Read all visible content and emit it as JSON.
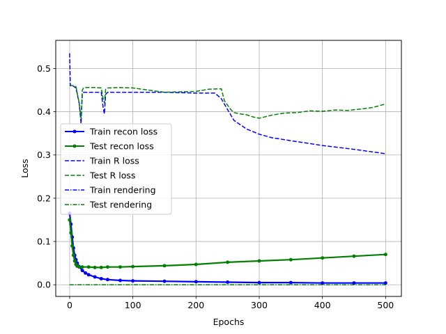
{
  "chart_data": {
    "type": "line",
    "xlabel": "Epochs",
    "ylabel": "Loss",
    "xlim": [
      -22,
      525
    ],
    "ylim": [
      -0.027,
      0.565
    ],
    "xticks": [
      0,
      100,
      200,
      300,
      400,
      500
    ],
    "yticks": [
      0.0,
      0.1,
      0.2,
      0.3,
      0.4,
      0.5
    ],
    "xtick_labels": [
      "0",
      "100",
      "200",
      "300",
      "400",
      "500"
    ],
    "ytick_labels": [
      "0.0",
      "0.1",
      "0.2",
      "0.3",
      "0.4",
      "0.5"
    ],
    "grid": true,
    "legend_position": "center-left",
    "series": [
      {
        "name": "Train recon loss",
        "color": "#0000ff",
        "style": "solid-dot",
        "x": [
          0,
          2,
          4,
          6,
          8,
          10,
          12,
          15,
          20,
          25,
          30,
          40,
          50,
          60,
          80,
          100,
          150,
          200,
          250,
          300,
          350,
          400,
          450,
          500
        ],
        "y": [
          0.165,
          0.14,
          0.11,
          0.085,
          0.068,
          0.058,
          0.05,
          0.042,
          0.033,
          0.027,
          0.023,
          0.018,
          0.014,
          0.012,
          0.01,
          0.009,
          0.008,
          0.007,
          0.006,
          0.005,
          0.005,
          0.004,
          0.004,
          0.004
        ]
      },
      {
        "name": "Test recon loss",
        "color": "#008000",
        "style": "solid-dot",
        "x": [
          0,
          2,
          4,
          6,
          8,
          10,
          12,
          15,
          20,
          30,
          40,
          50,
          60,
          80,
          100,
          150,
          200,
          250,
          300,
          350,
          400,
          450,
          500
        ],
        "y": [
          0.15,
          0.12,
          0.09,
          0.068,
          0.055,
          0.047,
          0.043,
          0.041,
          0.041,
          0.041,
          0.04,
          0.04,
          0.041,
          0.041,
          0.042,
          0.044,
          0.047,
          0.052,
          0.055,
          0.058,
          0.062,
          0.066,
          0.07
        ]
      },
      {
        "name": "Train R loss",
        "color": "#0000ff",
        "style": "dashed",
        "x": [
          0,
          1,
          2,
          5,
          10,
          15,
          18,
          20,
          22,
          25,
          30,
          40,
          50,
          53,
          55,
          57,
          60,
          80,
          100,
          150,
          200,
          230,
          240,
          250,
          260,
          280,
          300,
          320,
          350,
          400,
          450,
          500
        ],
        "y": [
          0.535,
          0.46,
          0.462,
          0.46,
          0.455,
          0.42,
          0.373,
          0.44,
          0.445,
          0.445,
          0.445,
          0.445,
          0.445,
          0.41,
          0.395,
          0.44,
          0.445,
          0.445,
          0.445,
          0.445,
          0.443,
          0.443,
          0.43,
          0.405,
          0.38,
          0.36,
          0.348,
          0.34,
          0.333,
          0.322,
          0.313,
          0.303
        ]
      },
      {
        "name": "Test R loss",
        "color": "#008000",
        "style": "dashed",
        "x": [
          0,
          5,
          10,
          15,
          18,
          20,
          22,
          25,
          30,
          40,
          50,
          53,
          55,
          57,
          60,
          80,
          100,
          150,
          200,
          220,
          240,
          245,
          250,
          255,
          260,
          270,
          280,
          290,
          300,
          320,
          340,
          360,
          380,
          400,
          420,
          440,
          460,
          480,
          500
        ],
        "y": [
          0.462,
          0.46,
          0.458,
          0.42,
          0.385,
          0.45,
          0.455,
          0.456,
          0.456,
          0.456,
          0.455,
          0.43,
          0.42,
          0.452,
          0.455,
          0.456,
          0.455,
          0.445,
          0.447,
          0.452,
          0.453,
          0.425,
          0.415,
          0.405,
          0.398,
          0.395,
          0.393,
          0.388,
          0.385,
          0.392,
          0.397,
          0.398,
          0.402,
          0.401,
          0.404,
          0.403,
          0.406,
          0.41,
          0.418
        ]
      },
      {
        "name": "Train rendering",
        "color": "#0000ff",
        "style": "dashdot",
        "x": [
          0,
          100,
          200,
          300,
          400,
          500
        ],
        "y": [
          0.0,
          0.0,
          0.0,
          0.0,
          0.0,
          0.0
        ]
      },
      {
        "name": "Test rendering",
        "color": "#008000",
        "style": "dashdot",
        "x": [
          0,
          100,
          200,
          300,
          400,
          500
        ],
        "y": [
          0.0,
          0.0,
          0.0,
          0.0,
          0.0,
          0.0
        ]
      }
    ]
  }
}
